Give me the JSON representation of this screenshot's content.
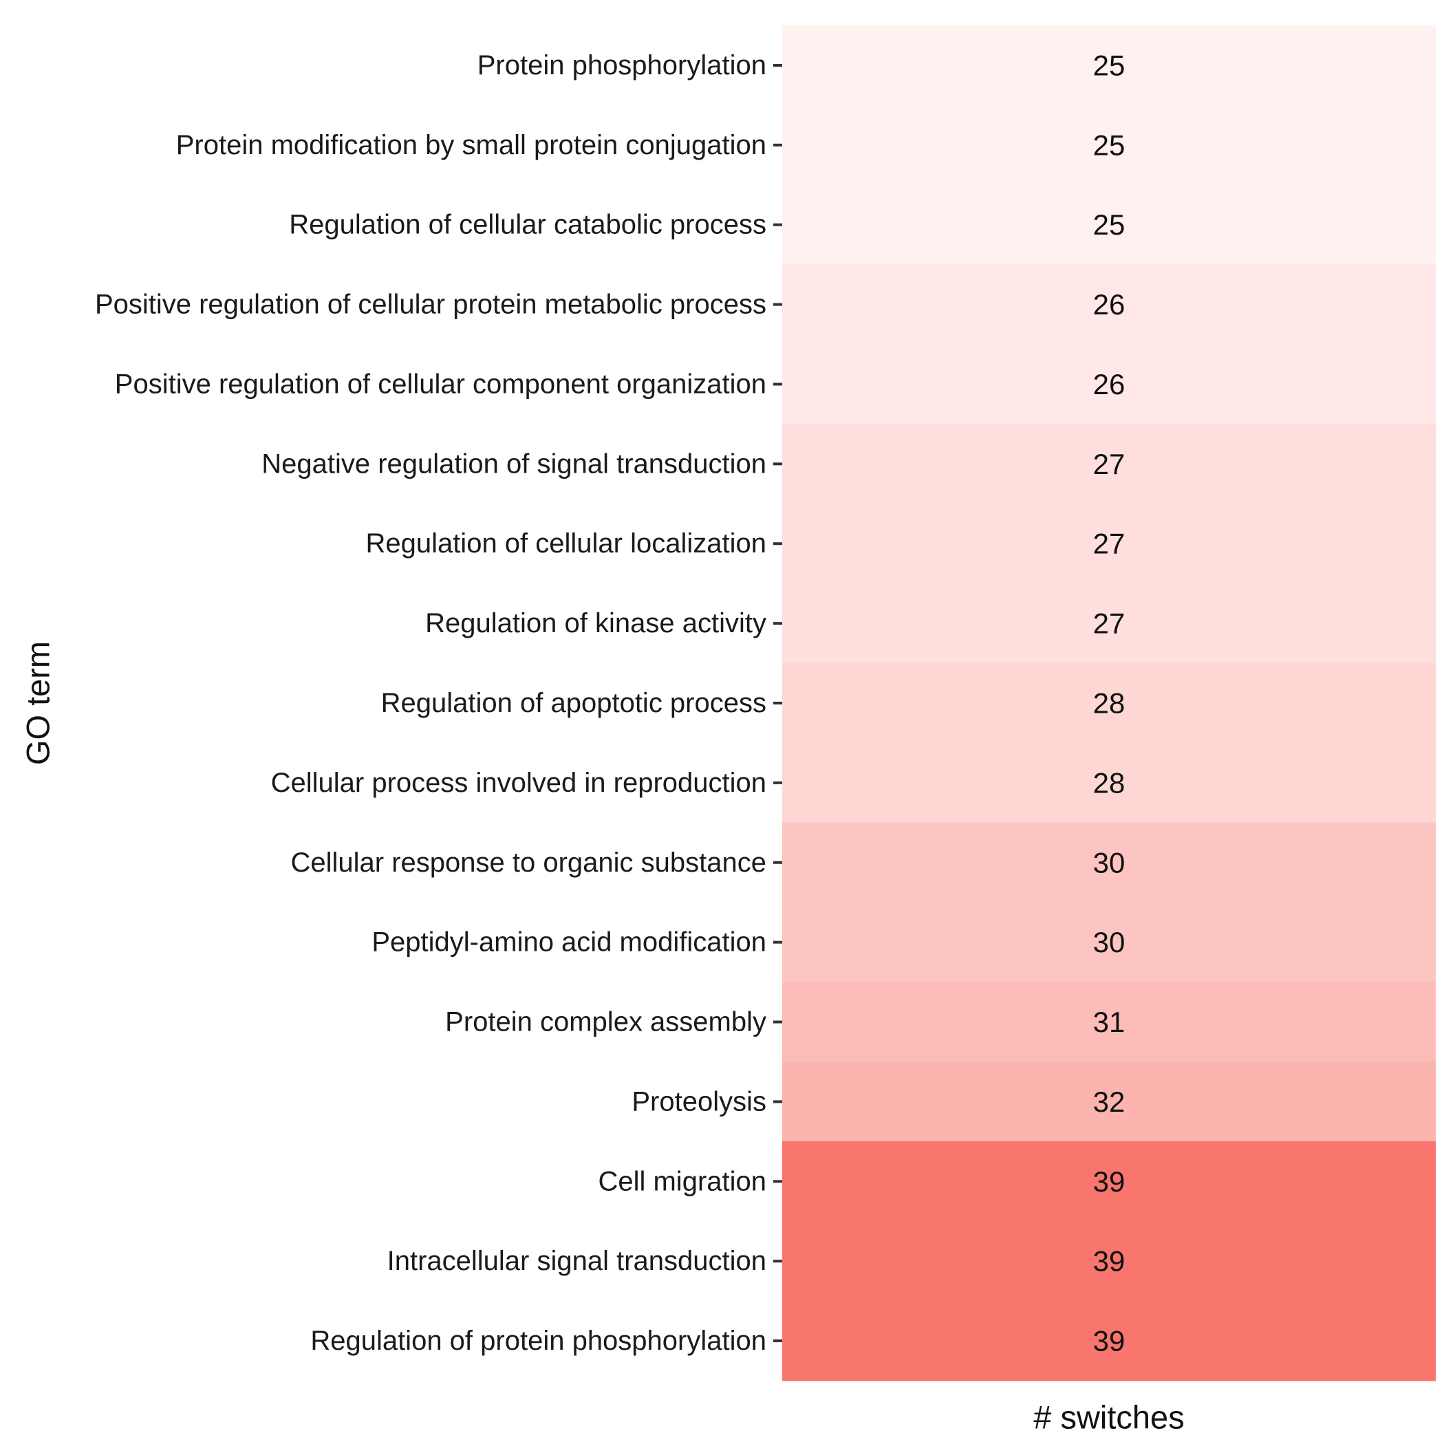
{
  "chart_data": {
    "type": "heatmap",
    "xlabel": "# switches",
    "ylabel": "GO term",
    "columns": [
      "# switches"
    ],
    "rows": [
      "Protein phosphorylation",
      "Protein modification by small protein conjugation",
      "Regulation of cellular catabolic process",
      "Positive regulation of cellular protein metabolic process",
      "Positive regulation of cellular component organization",
      "Negative regulation of signal transduction",
      "Regulation of cellular localization",
      "Regulation of kinase activity",
      "Regulation of apoptotic process",
      "Cellular process involved in reproduction",
      "Cellular response to organic substance",
      "Peptidyl-amino acid modification",
      "Protein complex assembly",
      "Proteolysis",
      "Cell migration",
      "Intracellular signal transduction",
      "Regulation of protein phosphorylation"
    ],
    "values": [
      25,
      25,
      25,
      26,
      26,
      27,
      27,
      27,
      28,
      28,
      30,
      30,
      31,
      32,
      39,
      39,
      39
    ],
    "color_scale": {
      "low": "#fff1f0",
      "high": "#f8766d",
      "min": 25,
      "max": 39
    },
    "legend": "none",
    "grid": false
  }
}
